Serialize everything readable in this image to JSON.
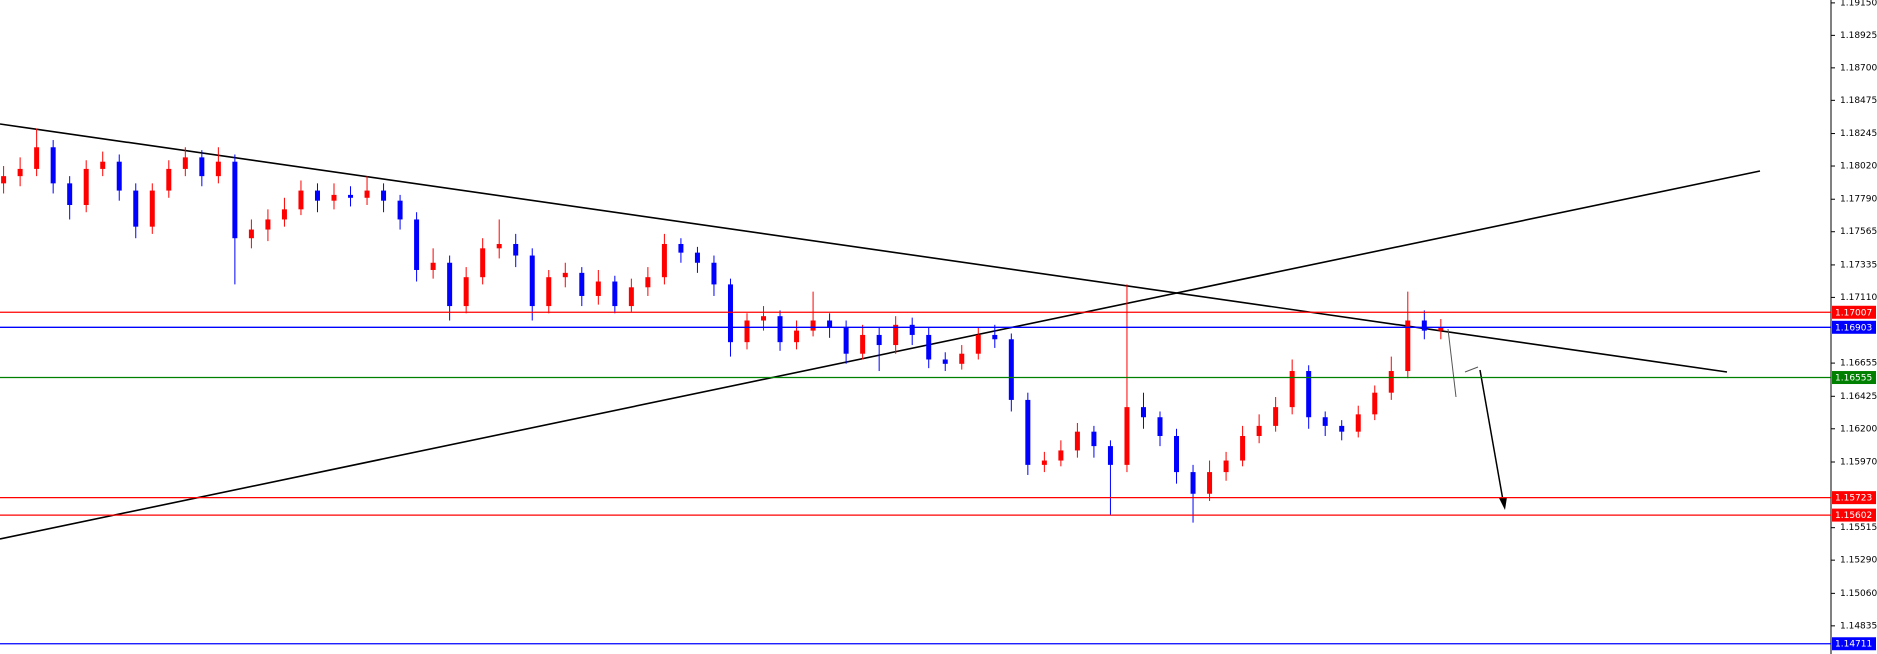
{
  "chart_data": {
    "type": "candlestick",
    "ylim": [
      1.1464,
      1.1917
    ],
    "yticks": [
      {
        "value": 1.1915,
        "label": "1.19150"
      },
      {
        "value": 1.18925,
        "label": "1.18925"
      },
      {
        "value": 1.187,
        "label": "1.18700"
      },
      {
        "value": 1.18475,
        "label": "1.18475"
      },
      {
        "value": 1.18245,
        "label": "1.18245"
      },
      {
        "value": 1.1802,
        "label": "1.18020"
      },
      {
        "value": 1.1779,
        "label": "1.17790"
      },
      {
        "value": 1.17565,
        "label": "1.17565"
      },
      {
        "value": 1.17335,
        "label": "1.17335"
      },
      {
        "value": 1.1711,
        "label": "1.17110"
      },
      {
        "value": 1.16655,
        "label": "1.16655"
      },
      {
        "value": 1.16425,
        "label": "1.16425"
      },
      {
        "value": 1.162,
        "label": "1.16200"
      },
      {
        "value": 1.1597,
        "label": "1.15970"
      },
      {
        "value": 1.15515,
        "label": "1.15515"
      },
      {
        "value": 1.1529,
        "label": "1.15290"
      },
      {
        "value": 1.1506,
        "label": "1.15060"
      },
      {
        "value": 1.14835,
        "label": "1.14835"
      }
    ],
    "up_color": "#ff0000",
    "down_color": "#0000ff",
    "candles": {
      "open": [
        1.179,
        1.1795,
        1.18,
        1.1815,
        1.179,
        1.1775,
        1.18,
        1.1805,
        1.1785,
        1.176,
        1.1785,
        1.18,
        1.1808,
        1.1795,
        1.1805,
        1.1752,
        1.1758,
        1.1765,
        1.1772,
        1.1785,
        1.1778,
        1.1782,
        1.178,
        1.1785,
        1.1778,
        1.1765,
        1.173,
        1.1735,
        1.1705,
        1.1725,
        1.1745,
        1.1748,
        1.174,
        1.1705,
        1.1725,
        1.1728,
        1.1712,
        1.1722,
        1.1705,
        1.1718,
        1.1725,
        1.1748,
        1.1742,
        1.1735,
        1.172,
        1.168,
        1.1695,
        1.1698,
        1.168,
        1.1688,
        1.1695,
        1.169,
        1.1672,
        1.1685,
        1.1678,
        1.1692,
        1.1685,
        1.1668,
        1.1665,
        1.1672,
        1.1685,
        1.1682,
        1.164,
        1.1595,
        1.1598,
        1.1605,
        1.1618,
        1.1608,
        1.1595,
        1.1635,
        1.1628,
        1.1615,
        1.159,
        1.1575,
        1.159,
        1.1598,
        1.1615,
        1.1622,
        1.1635,
        1.166,
        1.1628,
        1.1622,
        1.1618,
        1.163,
        1.1645,
        1.166,
        1.1695,
        1.1688
      ],
      "high": [
        1.1802,
        1.1808,
        1.1828,
        1.182,
        1.1795,
        1.1806,
        1.1812,
        1.181,
        1.179,
        1.179,
        1.1806,
        1.1815,
        1.1813,
        1.1815,
        1.181,
        1.1765,
        1.1772,
        1.178,
        1.1792,
        1.179,
        1.179,
        1.1788,
        1.1795,
        1.179,
        1.1782,
        1.177,
        1.1745,
        1.174,
        1.1732,
        1.1752,
        1.1765,
        1.1755,
        1.1745,
        1.173,
        1.1735,
        1.1732,
        1.173,
        1.1726,
        1.1724,
        1.1732,
        1.1755,
        1.1752,
        1.1746,
        1.174,
        1.1724,
        1.17,
        1.1705,
        1.1702,
        1.1695,
        1.1715,
        1.17,
        1.1695,
        1.1692,
        1.169,
        1.1698,
        1.1697,
        1.169,
        1.1673,
        1.1678,
        1.169,
        1.1692,
        1.1686,
        1.1645,
        1.1604,
        1.1612,
        1.1624,
        1.1622,
        1.1612,
        1.172,
        1.1645,
        1.1632,
        1.162,
        1.1595,
        1.1598,
        1.1604,
        1.1622,
        1.163,
        1.1642,
        1.1668,
        1.1664,
        1.1632,
        1.1626,
        1.1636,
        1.165,
        1.167,
        1.1715,
        1.1702,
        1.1696
      ],
      "low": [
        1.1783,
        1.1788,
        1.1795,
        1.1783,
        1.1765,
        1.177,
        1.1795,
        1.1778,
        1.1752,
        1.1755,
        1.178,
        1.1795,
        1.1788,
        1.179,
        1.172,
        1.1745,
        1.175,
        1.176,
        1.1768,
        1.177,
        1.1772,
        1.1774,
        1.1775,
        1.177,
        1.1758,
        1.1722,
        1.1724,
        1.1695,
        1.17,
        1.172,
        1.1738,
        1.1732,
        1.1695,
        1.17,
        1.1718,
        1.1705,
        1.1706,
        1.17,
        1.1701,
        1.1712,
        1.172,
        1.1735,
        1.1728,
        1.1712,
        1.167,
        1.1675,
        1.1688,
        1.1674,
        1.1675,
        1.1684,
        1.1683,
        1.1665,
        1.1668,
        1.166,
        1.1672,
        1.1678,
        1.1662,
        1.166,
        1.1661,
        1.1668,
        1.1676,
        1.1632,
        1.1588,
        1.159,
        1.1594,
        1.16,
        1.16,
        1.156,
        1.159,
        1.162,
        1.1608,
        1.1582,
        1.1555,
        1.157,
        1.1584,
        1.1594,
        1.161,
        1.1618,
        1.163,
        1.162,
        1.1615,
        1.1612,
        1.1614,
        1.1626,
        1.164,
        1.1655,
        1.1682,
        1.1682
      ],
      "close": [
        1.1795,
        1.18,
        1.1815,
        1.179,
        1.1775,
        1.18,
        1.1805,
        1.1785,
        1.176,
        1.1785,
        1.18,
        1.1808,
        1.1795,
        1.1805,
        1.1752,
        1.1758,
        1.1765,
        1.1772,
        1.1785,
        1.1778,
        1.1782,
        1.178,
        1.1785,
        1.1778,
        1.1765,
        1.173,
        1.1735,
        1.1705,
        1.1725,
        1.1745,
        1.1748,
        1.174,
        1.1705,
        1.1725,
        1.1728,
        1.1712,
        1.1722,
        1.1705,
        1.1718,
        1.1725,
        1.1748,
        1.1742,
        1.1735,
        1.172,
        1.168,
        1.1695,
        1.1698,
        1.168,
        1.1688,
        1.1695,
        1.169,
        1.1672,
        1.1685,
        1.1678,
        1.1692,
        1.1685,
        1.1668,
        1.1665,
        1.1672,
        1.1685,
        1.1682,
        1.164,
        1.1595,
        1.1598,
        1.1605,
        1.1618,
        1.1608,
        1.1595,
        1.1635,
        1.1628,
        1.1615,
        1.159,
        1.1575,
        1.159,
        1.1598,
        1.1615,
        1.1622,
        1.1635,
        1.166,
        1.1628,
        1.1622,
        1.1618,
        1.163,
        1.1645,
        1.166,
        1.1695,
        1.1688,
        1.169
      ]
    },
    "levels": [
      {
        "value": 1.17007,
        "color": "#ff0000"
      },
      {
        "value": 1.16903,
        "color": "#0000ff"
      },
      {
        "value": 1.16555,
        "color": "#008000"
      },
      {
        "value": 1.15723,
        "color": "#ff0000"
      },
      {
        "value": 1.15602,
        "color": "#ff0000"
      },
      {
        "value": 1.14711,
        "color": "#0000ff"
      }
    ]
  }
}
